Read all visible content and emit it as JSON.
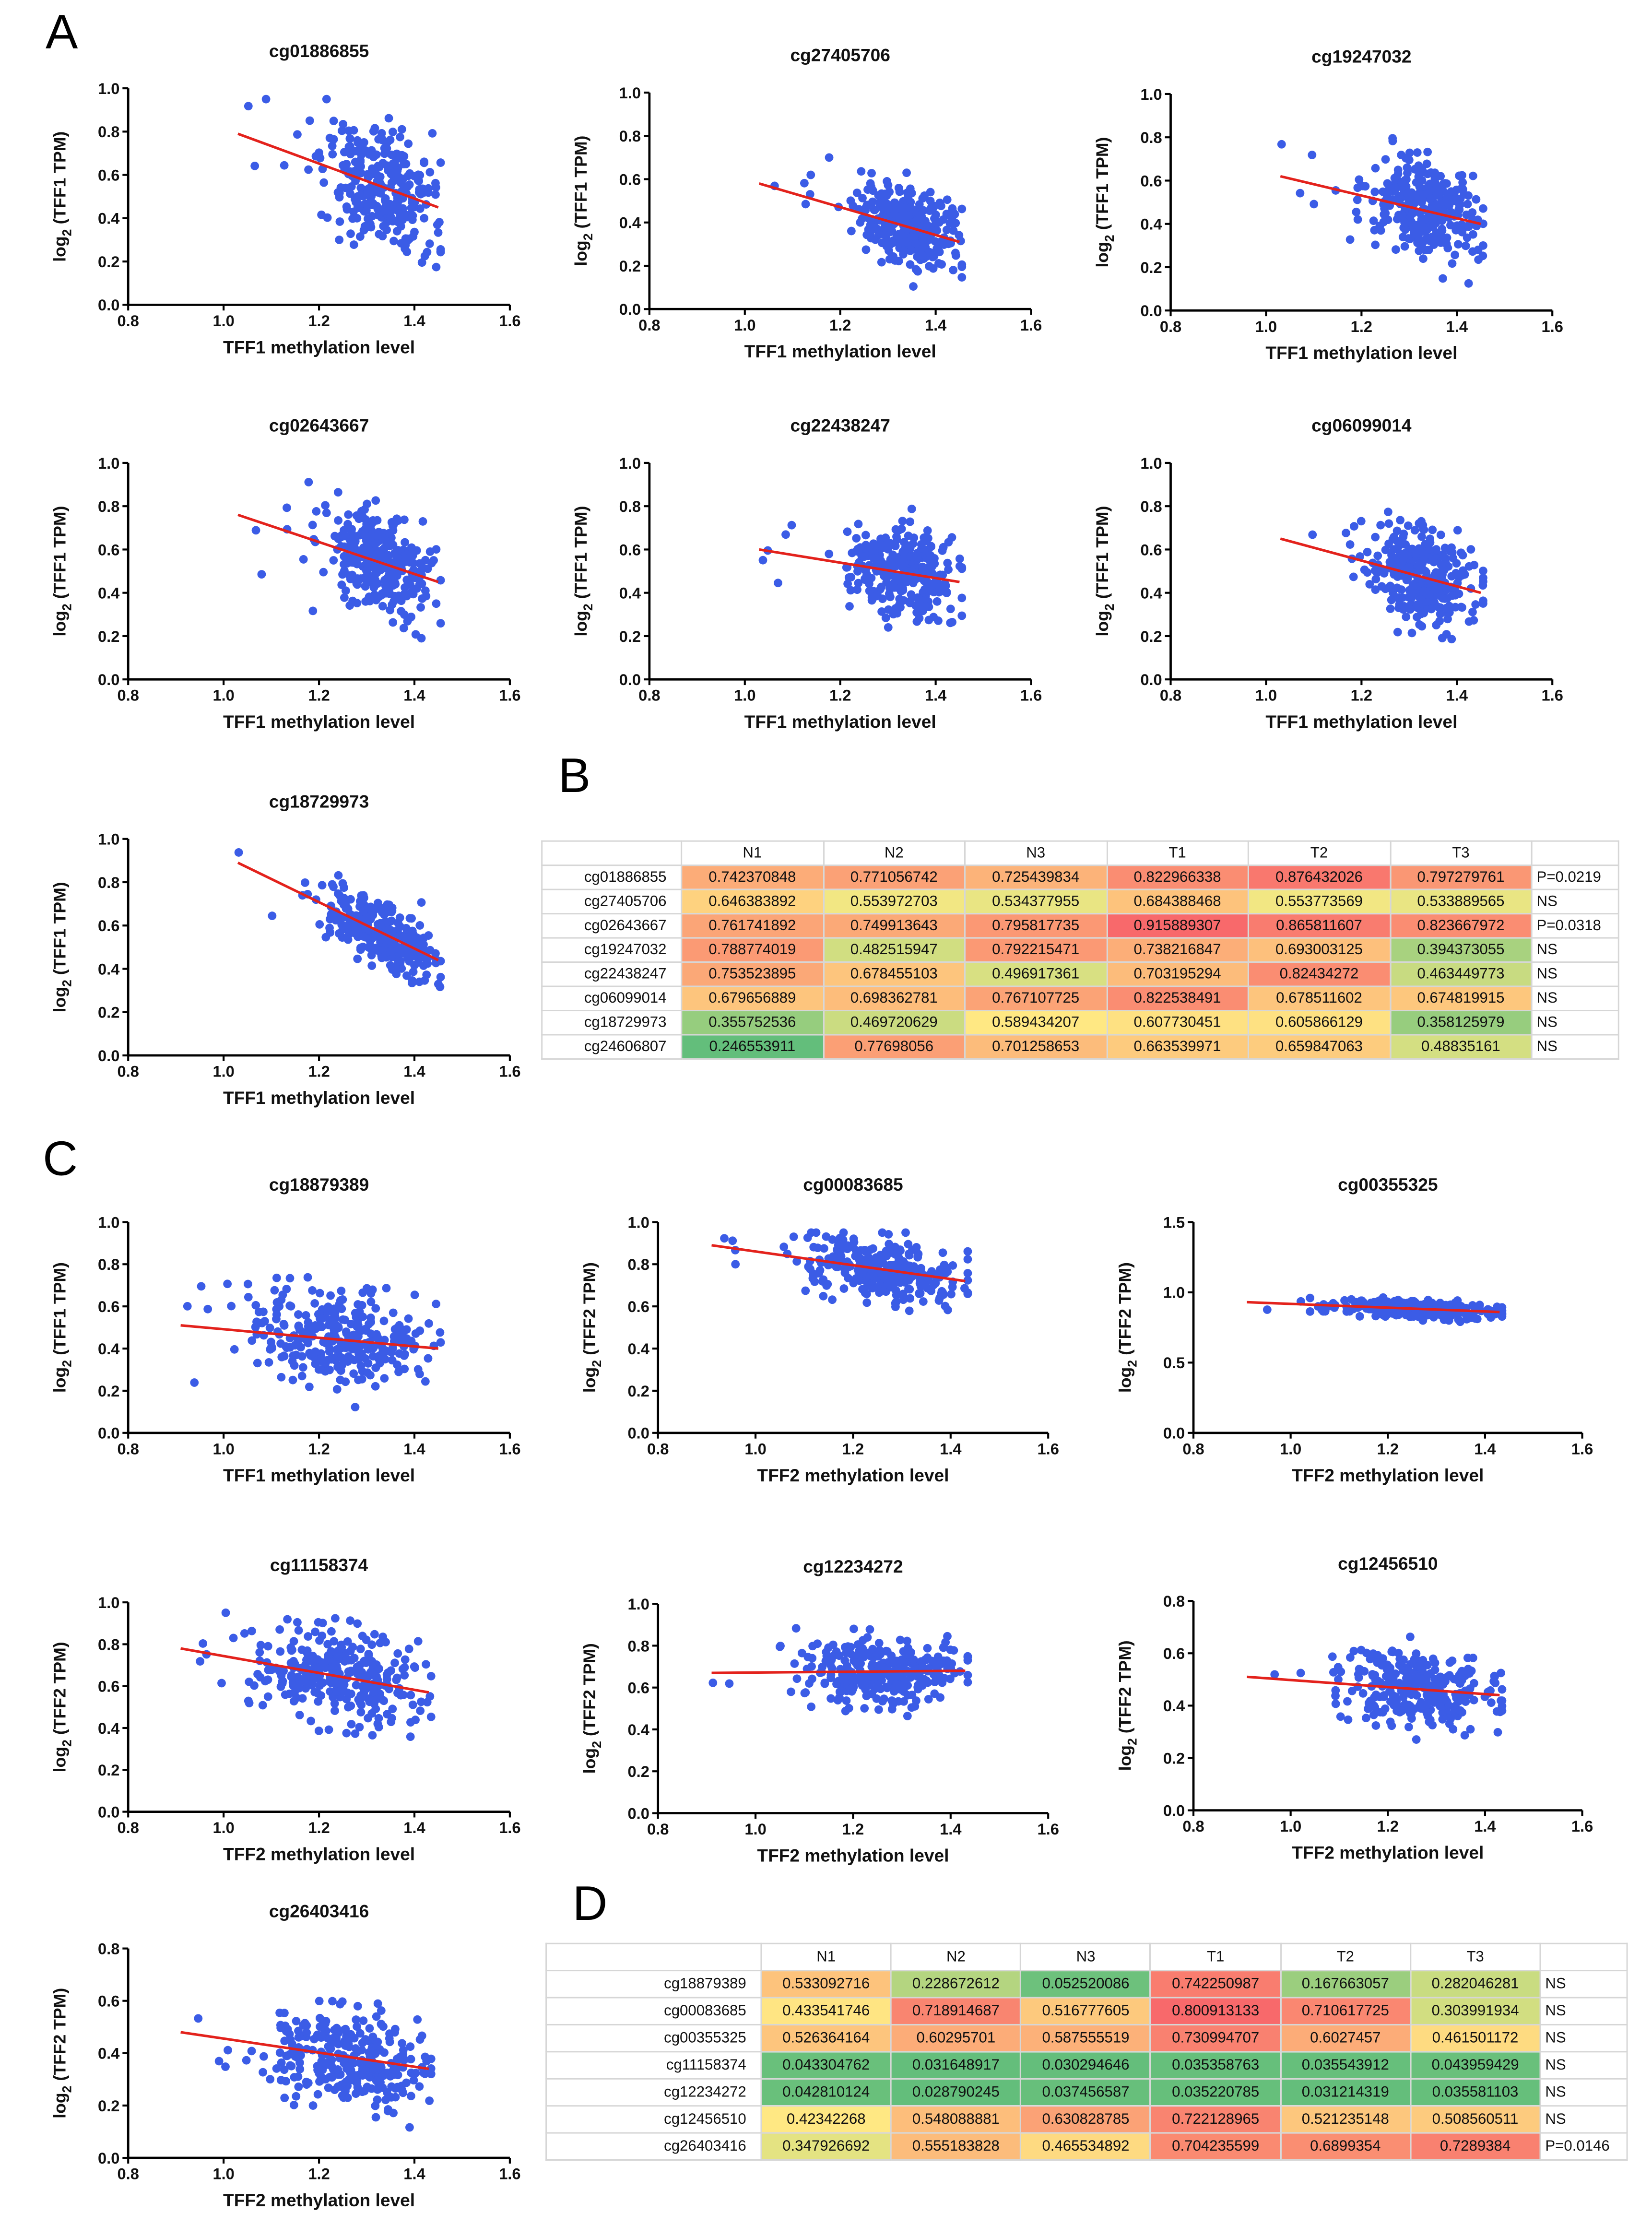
{
  "panel_letters": {
    "a": "A",
    "b": "B",
    "c": "C",
    "d": "D"
  },
  "ylabel_base": "log",
  "ylabel_sub": "2",
  "chart_data": [
    {
      "type": "scatter",
      "title": "cg01886855",
      "xlabel": "TFF1 methylation level",
      "ylabel": " (TFF1 TPM)",
      "xlim": [
        0.8,
        1.6
      ],
      "xticks": [
        "0.8",
        "1.0",
        "1.2",
        "1.4",
        "1.6"
      ],
      "ylim": [
        0,
        1
      ],
      "yticks": [
        "0.0",
        "0.2",
        "0.4",
        "0.6",
        "0.8",
        "1.0"
      ],
      "fit_line": [
        [
          1.03,
          0.79
        ],
        [
          1.45,
          0.45
        ]
      ],
      "n_points": 300,
      "x_center": 1.33,
      "x_spread": 0.07,
      "y_spread": 0.17
    },
    {
      "type": "scatter",
      "title": "cg27405706",
      "xlabel": "TFF1 methylation level",
      "ylabel": " (TFF1 TPM)",
      "xlim": [
        0.8,
        1.6
      ],
      "xticks": [
        "0.8",
        "1.0",
        "1.2",
        "1.4",
        "1.6"
      ],
      "ylim": [
        0,
        1
      ],
      "yticks": [
        "0.0",
        "0.2",
        "0.4",
        "0.6",
        "0.8",
        "1.0"
      ],
      "fit_line": [
        [
          1.03,
          0.58
        ],
        [
          1.45,
          0.31
        ]
      ],
      "n_points": 300,
      "x_center": 1.34,
      "x_spread": 0.07,
      "y_spread": 0.11
    },
    {
      "type": "scatter",
      "title": "cg19247032",
      "xlabel": "TFF1 methylation level",
      "ylabel": " (TFF1 TPM)",
      "xlim": [
        0.8,
        1.6
      ],
      "xticks": [
        "0.8",
        "1.0",
        "1.2",
        "1.4",
        "1.6"
      ],
      "ylim": [
        0,
        1
      ],
      "yticks": [
        "0.0",
        "0.2",
        "0.4",
        "0.6",
        "0.8",
        "1.0"
      ],
      "fit_line": [
        [
          1.03,
          0.62
        ],
        [
          1.45,
          0.4
        ]
      ],
      "n_points": 300,
      "x_center": 1.33,
      "x_spread": 0.07,
      "y_spread": 0.14
    },
    {
      "type": "scatter",
      "title": "cg02643667",
      "xlabel": "TFF1 methylation level",
      "ylabel": " (TFF1 TPM)",
      "xlim": [
        0.8,
        1.6
      ],
      "xticks": [
        "0.8",
        "1.0",
        "1.2",
        "1.4",
        "1.6"
      ],
      "ylim": [
        0,
        1
      ],
      "yticks": [
        "0.0",
        "0.2",
        "0.4",
        "0.6",
        "0.8",
        "1.0"
      ],
      "fit_line": [
        [
          1.03,
          0.76
        ],
        [
          1.45,
          0.45
        ]
      ],
      "n_points": 300,
      "x_center": 1.32,
      "x_spread": 0.07,
      "y_spread": 0.14
    },
    {
      "type": "scatter",
      "title": "cg22438247",
      "xlabel": "TFF1 methylation level",
      "ylabel": " (TFF1 TPM)",
      "xlim": [
        0.8,
        1.6
      ],
      "xticks": [
        "0.8",
        "1.0",
        "1.2",
        "1.4",
        "1.6"
      ],
      "ylim": [
        0,
        1
      ],
      "yticks": [
        "0.0",
        "0.2",
        "0.4",
        "0.6",
        "0.8",
        "1.0"
      ],
      "fit_line": [
        [
          1.03,
          0.6
        ],
        [
          1.45,
          0.45
        ]
      ],
      "n_points": 300,
      "x_center": 1.33,
      "x_spread": 0.07,
      "y_spread": 0.12
    },
    {
      "type": "scatter",
      "title": "cg06099014",
      "xlabel": "TFF1 methylation level",
      "ylabel": " (TFF1 TPM)",
      "xlim": [
        0.8,
        1.6
      ],
      "xticks": [
        "0.8",
        "1.0",
        "1.2",
        "1.4",
        "1.6"
      ],
      "ylim": [
        0,
        1
      ],
      "yticks": [
        "0.0",
        "0.2",
        "0.4",
        "0.6",
        "0.8",
        "1.0"
      ],
      "fit_line": [
        [
          1.03,
          0.65
        ],
        [
          1.45,
          0.4
        ]
      ],
      "n_points": 300,
      "x_center": 1.33,
      "x_spread": 0.07,
      "y_spread": 0.13
    },
    {
      "type": "scatter",
      "title": "cg18729973",
      "xlabel": "TFF1 methylation level",
      "ylabel": " (TFF1 TPM)",
      "xlim": [
        0.8,
        1.6
      ],
      "xticks": [
        "0.8",
        "1.0",
        "1.2",
        "1.4",
        "1.6"
      ],
      "ylim": [
        0,
        1
      ],
      "yticks": [
        "0.0",
        "0.2",
        "0.4",
        "0.6",
        "0.8",
        "1.0"
      ],
      "fit_line": [
        [
          1.03,
          0.89
        ],
        [
          1.45,
          0.44
        ]
      ],
      "n_points": 300,
      "x_center": 1.33,
      "x_spread": 0.07,
      "y_spread": 0.09
    },
    {
      "type": "scatter",
      "title": "cg18879389",
      "xlabel": "TFF1 methylation level",
      "ylabel": " (TFF1 TPM)",
      "xlim": [
        0.8,
        1.6
      ],
      "xticks": [
        "0.8",
        "1.0",
        "1.2",
        "1.4",
        "1.6"
      ],
      "ylim": [
        0,
        1
      ],
      "yticks": [
        "0.0",
        "0.2",
        "0.4",
        "0.6",
        "0.8",
        "1.0"
      ],
      "fit_line": [
        [
          0.91,
          0.51
        ],
        [
          1.45,
          0.4
        ]
      ],
      "n_points": 300,
      "x_center": 1.25,
      "x_spread": 0.11,
      "y_spread": 0.13
    },
    {
      "type": "scatter",
      "title": "cg00083685",
      "xlabel": "TFF2 methylation level",
      "ylabel": " (TFF2 TPM)",
      "xlim": [
        0.8,
        1.6
      ],
      "xticks": [
        "0.8",
        "1.0",
        "1.2",
        "1.4",
        "1.6"
      ],
      "ylim": [
        0,
        1
      ],
      "yticks": [
        "0.0",
        "0.2",
        "0.4",
        "0.6",
        "0.8",
        "1.0"
      ],
      "fit_line": [
        [
          0.91,
          0.89
        ],
        [
          1.43,
          0.72
        ]
      ],
      "n_points": 300,
      "x_center": 1.26,
      "x_spread": 0.1,
      "y_spread": 0.09
    },
    {
      "type": "scatter",
      "title": "cg00355325",
      "xlabel": "TFF2 methylation level",
      "ylabel": " (TFF2 TPM)",
      "xlim": [
        0.8,
        1.6
      ],
      "xticks": [
        "0.8",
        "1.0",
        "1.2",
        "1.4",
        "1.6"
      ],
      "ylim": [
        0,
        1.5
      ],
      "yticks": [
        "0.0",
        "0.5",
        "1.0",
        "1.5"
      ],
      "fit_line": [
        [
          0.91,
          0.93
        ],
        [
          1.43,
          0.86
        ]
      ],
      "n_points": 300,
      "x_center": 1.26,
      "x_spread": 0.1,
      "y_spread": 0.04
    },
    {
      "type": "scatter",
      "title": "cg11158374",
      "xlabel": "TFF2 methylation level",
      "ylabel": " (TFF2 TPM)",
      "xlim": [
        0.8,
        1.6
      ],
      "xticks": [
        "0.8",
        "1.0",
        "1.2",
        "1.4",
        "1.6"
      ],
      "ylim": [
        0,
        1
      ],
      "yticks": [
        "0.0",
        "0.2",
        "0.4",
        "0.6",
        "0.8",
        "1.0"
      ],
      "fit_line": [
        [
          0.91,
          0.78
        ],
        [
          1.43,
          0.57
        ]
      ],
      "n_points": 300,
      "x_center": 1.24,
      "x_spread": 0.11,
      "y_spread": 0.14
    },
    {
      "type": "scatter",
      "title": "cg12234272",
      "xlabel": "TFF2 methylation level",
      "ylabel": " (TFF2 TPM)",
      "xlim": [
        0.8,
        1.6
      ],
      "xticks": [
        "0.8",
        "1.0",
        "1.2",
        "1.4",
        "1.6"
      ],
      "ylim": [
        0,
        1
      ],
      "yticks": [
        "0.0",
        "0.2",
        "0.4",
        "0.6",
        "0.8",
        "1.0"
      ],
      "fit_line": [
        [
          0.91,
          0.67
        ],
        [
          1.43,
          0.68
        ]
      ],
      "n_points": 300,
      "x_center": 1.27,
      "x_spread": 0.1,
      "y_spread": 0.1
    },
    {
      "type": "scatter",
      "title": "cg12456510",
      "xlabel": "TFF2 methylation level",
      "ylabel": " (TFF2 TPM)",
      "xlim": [
        0.8,
        1.6
      ],
      "xticks": [
        "0.8",
        "1.0",
        "1.2",
        "1.4",
        "1.6"
      ],
      "ylim": [
        0,
        0.8
      ],
      "yticks": [
        "0.0",
        "0.2",
        "0.4",
        "0.6",
        "0.8"
      ],
      "fit_line": [
        [
          0.91,
          0.51
        ],
        [
          1.43,
          0.44
        ]
      ],
      "n_points": 300,
      "x_center": 1.27,
      "x_spread": 0.1,
      "y_spread": 0.09
    },
    {
      "type": "scatter",
      "title": "cg26403416",
      "xlabel": "TFF2 methylation level",
      "ylabel": " (TFF2 TPM)",
      "xlim": [
        0.8,
        1.6
      ],
      "xticks": [
        "0.8",
        "1.0",
        "1.2",
        "1.4",
        "1.6"
      ],
      "ylim": [
        0,
        0.8
      ],
      "yticks": [
        "0.0",
        "0.2",
        "0.4",
        "0.6",
        "0.8"
      ],
      "fit_line": [
        [
          0.91,
          0.48
        ],
        [
          1.43,
          0.34
        ]
      ],
      "n_points": 300,
      "x_center": 1.26,
      "x_spread": 0.1,
      "y_spread": 0.11
    }
  ],
  "table_b": {
    "type": "table",
    "columns": [
      "N1",
      "N2",
      "N3",
      "T1",
      "T2",
      "T3"
    ],
    "rows": [
      {
        "label": "cg01886855",
        "values": [
          "0.742370848",
          "0.771056742",
          "0.725439834",
          "0.822966338",
          "0.876432026",
          "0.797279761"
        ],
        "p": "P=0.0219"
      },
      {
        "label": "cg27405706",
        "values": [
          "0.646383892",
          "0.553972703",
          "0.534377955",
          "0.684388468",
          "0.553773569",
          "0.533889565"
        ],
        "p": "NS"
      },
      {
        "label": "cg02643667",
        "values": [
          "0.761741892",
          "0.749913643",
          "0.795817735",
          "0.915889307",
          "0.865811607",
          "0.823667972"
        ],
        "p": "P=0.0318"
      },
      {
        "label": "cg19247032",
        "values": [
          "0.788774019",
          "0.482515947",
          "0.792215471",
          "0.738216847",
          "0.693003125",
          "0.394373055"
        ],
        "p": "NS"
      },
      {
        "label": "cg22438247",
        "values": [
          "0.753523895",
          "0.678455103",
          "0.496917361",
          "0.703195294",
          "0.82434272",
          "0.463449773"
        ],
        "p": "NS"
      },
      {
        "label": "cg06099014",
        "values": [
          "0.679656889",
          "0.698362781",
          "0.767107725",
          "0.822538491",
          "0.678511602",
          "0.674819915"
        ],
        "p": "NS"
      },
      {
        "label": "cg18729973",
        "values": [
          "0.355752536",
          "0.469720629",
          "0.589434207",
          "0.607730451",
          "0.605866129",
          "0.358125979"
        ],
        "p": "NS"
      },
      {
        "label": "cg24606807",
        "values": [
          "0.246553911",
          "0.77698056",
          "0.701258653",
          "0.663539971",
          "0.659847063",
          "0.48835161"
        ],
        "p": "NS"
      }
    ]
  },
  "table_d": {
    "type": "table",
    "columns": [
      "N1",
      "N2",
      "N3",
      "T1",
      "T2",
      "T3"
    ],
    "rows": [
      {
        "label": "cg18879389",
        "values": [
          "0.533092716",
          "0.228672612",
          "0.052520086",
          "0.742250987",
          "0.167663057",
          "0.282046281"
        ],
        "p": "NS"
      },
      {
        "label": "cg00083685",
        "values": [
          "0.433541746",
          "0.718914687",
          "0.516777605",
          "0.800913133",
          "0.710617725",
          "0.303991934"
        ],
        "p": "NS"
      },
      {
        "label": "cg00355325",
        "values": [
          "0.526364164",
          "0.60295701",
          "0.587555519",
          "0.730994707",
          "0.6027457",
          "0.461501172"
        ],
        "p": "NS"
      },
      {
        "label": "cg11158374",
        "values": [
          "0.043304762",
          "0.031648917",
          "0.030294646",
          "0.035358763",
          "0.035543912",
          "0.043959429"
        ],
        "p": "NS"
      },
      {
        "label": "cg12234272",
        "values": [
          "0.042810124",
          "0.028790245",
          "0.037456587",
          "0.035220785",
          "0.031214319",
          "0.035581103"
        ],
        "p": "NS"
      },
      {
        "label": "cg12456510",
        "values": [
          "0.42342268",
          "0.548088881",
          "0.630828785",
          "0.722128965",
          "0.521235148",
          "0.508560511"
        ],
        "p": "NS"
      },
      {
        "label": "cg26403416",
        "values": [
          "0.347926692",
          "0.555183828",
          "0.465534892",
          "0.704235599",
          "0.6899354",
          "0.7289384"
        ],
        "p": "P=0.0146"
      }
    ]
  },
  "colors": {
    "points": "#3b5ce6",
    "fit_line": "#e3221c",
    "low": "#63be7b",
    "mid": "#ffeb84",
    "high": "#f8696b"
  }
}
